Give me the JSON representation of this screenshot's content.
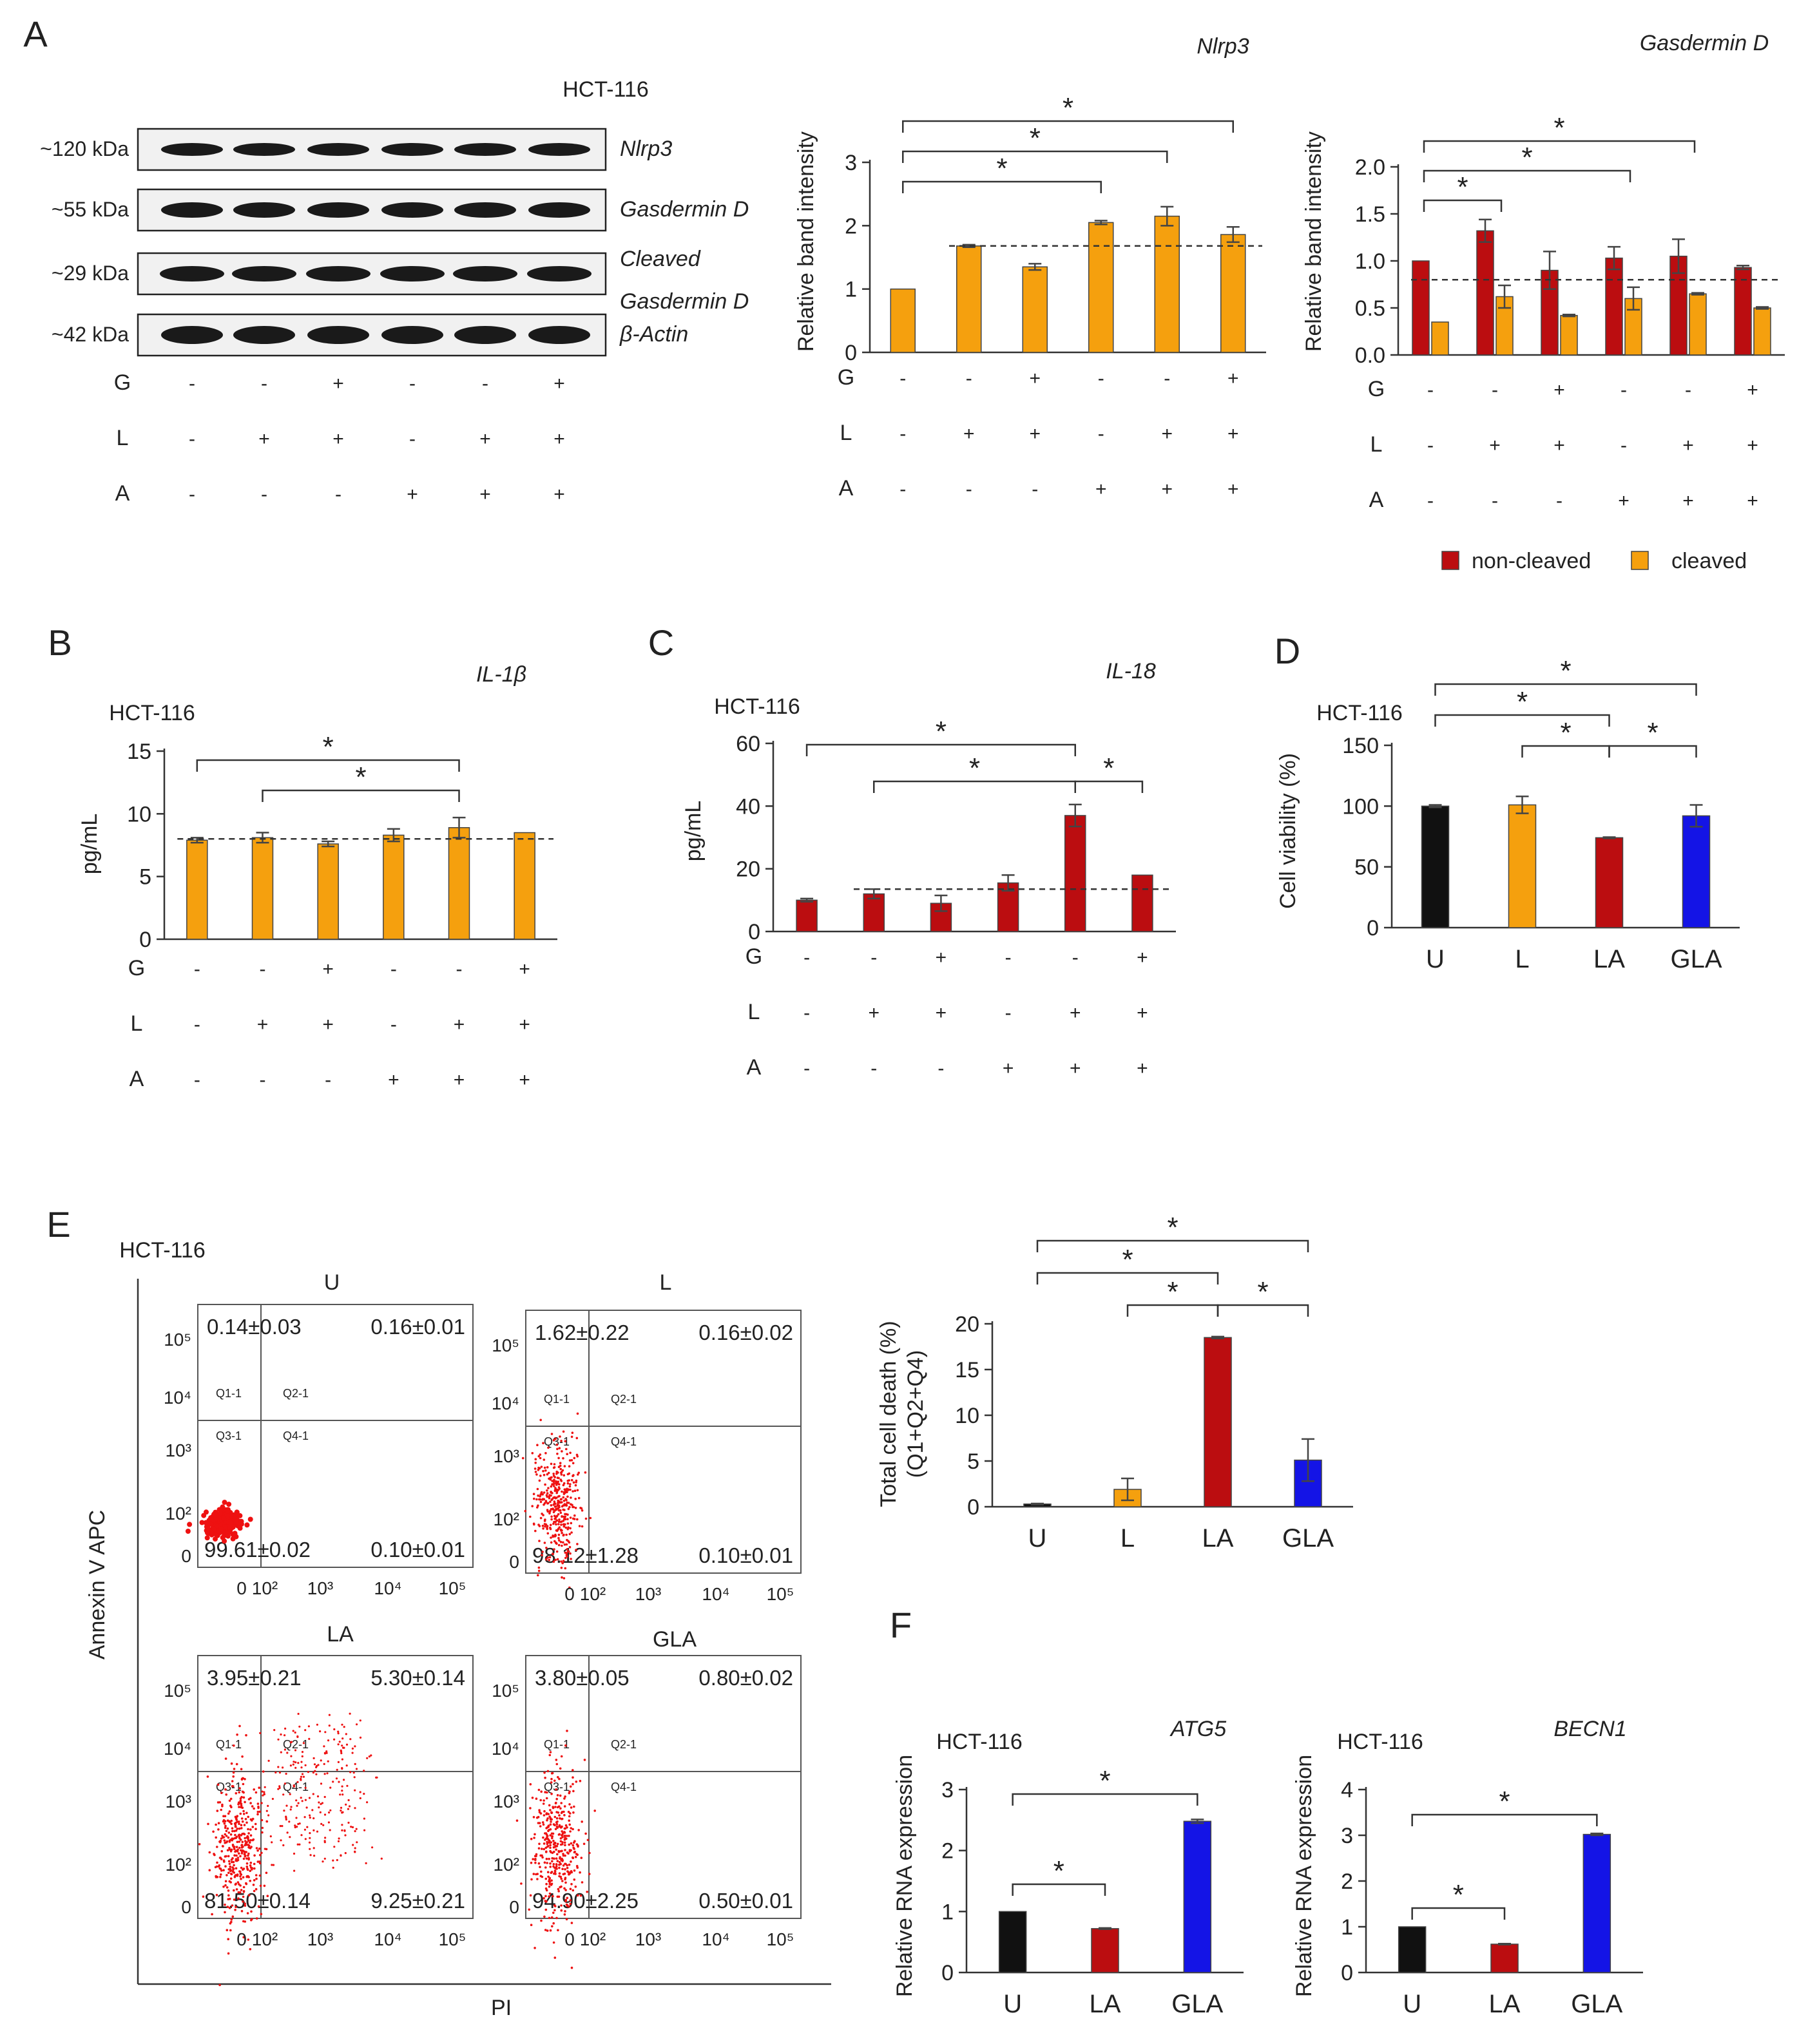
{
  "colors": {
    "orange": "#f5a00e",
    "red": "#bb0d10",
    "black": "#111111",
    "blue": "#1414e6",
    "flow": "#ee1111",
    "axis": "#333333"
  },
  "panelA": {
    "letter": "A",
    "blot": {
      "cell_line": "HCT-116",
      "rows": [
        {
          "kda": "~120 kDa",
          "label_lines": [
            "Nlrp3"
          ]
        },
        {
          "kda": "~55 kDa",
          "label_lines": [
            "Gasdermin D"
          ]
        },
        {
          "kda": "~29 kDa",
          "label_lines": [
            "Cleaved",
            "Gasdermin D"
          ]
        },
        {
          "kda": "~42 kDa",
          "label_lines": [
            "β-Actin"
          ]
        }
      ],
      "treatments": [
        {
          "name": "G",
          "signs": [
            "-",
            "-",
            "+",
            "-",
            "-",
            "+"
          ]
        },
        {
          "name": "L",
          "signs": [
            "-",
            "+",
            "+",
            "-",
            "+",
            "+"
          ]
        },
        {
          "name": "A",
          "signs": [
            "-",
            "-",
            "-",
            "+",
            "+",
            "+"
          ]
        }
      ]
    },
    "nlrp3_chart": {
      "title": "Nlrp3",
      "ylabel": "Relative band intensity",
      "y_ticks": [
        "0",
        "1",
        "2",
        "3"
      ],
      "star": "*",
      "treatments": [
        {
          "name": "G",
          "signs": [
            "-",
            "-",
            "+",
            "-",
            "-",
            "+"
          ]
        },
        {
          "name": "L",
          "signs": [
            "-",
            "+",
            "+",
            "-",
            "+",
            "+"
          ]
        },
        {
          "name": "A",
          "signs": [
            "-",
            "-",
            "-",
            "+",
            "+",
            "+"
          ]
        }
      ]
    },
    "gsdmd_chart": {
      "title": "Gasdermin D",
      "ylabel": "Relative band intensity",
      "y_ticks": [
        "0.0",
        "0.5",
        "1.0",
        "1.5",
        "2.0"
      ],
      "star": "*",
      "legend": [
        "non-cleaved",
        "cleaved"
      ],
      "treatments": [
        {
          "name": "G",
          "signs": [
            "-",
            "-",
            "+",
            "-",
            "-",
            "+"
          ]
        },
        {
          "name": "L",
          "signs": [
            "-",
            "+",
            "+",
            "-",
            "+",
            "+"
          ]
        },
        {
          "name": "A",
          "signs": [
            "-",
            "-",
            "-",
            "+",
            "+",
            "+"
          ]
        }
      ]
    }
  },
  "panelB": {
    "letter": "B",
    "title": "IL-1β",
    "cell_line": "HCT-116",
    "ylabel": "pg/mL",
    "y_ticks": [
      "0",
      "5",
      "10",
      "15"
    ],
    "star": "*",
    "treatments": [
      {
        "name": "G",
        "signs": [
          "-",
          "-",
          "+",
          "-",
          "-",
          "+"
        ]
      },
      {
        "name": "L",
        "signs": [
          "-",
          "+",
          "+",
          "-",
          "+",
          "+"
        ]
      },
      {
        "name": "A",
        "signs": [
          "-",
          "-",
          "-",
          "+",
          "+",
          "+"
        ]
      }
    ]
  },
  "panelC": {
    "letter": "C",
    "title": "IL-18",
    "cell_line": "HCT-116",
    "ylabel": "pg/mL",
    "y_ticks": [
      "0",
      "20",
      "40",
      "60"
    ],
    "star": "*",
    "treatments": [
      {
        "name": "G",
        "signs": [
          "-",
          "-",
          "+",
          "-",
          "-",
          "+"
        ]
      },
      {
        "name": "L",
        "signs": [
          "-",
          "+",
          "+",
          "-",
          "+",
          "+"
        ]
      },
      {
        "name": "A",
        "signs": [
          "-",
          "-",
          "-",
          "+",
          "+",
          "+"
        ]
      }
    ]
  },
  "panelD": {
    "letter": "D",
    "cell_line": "HCT-116",
    "ylabel": "Cell viability (%)",
    "y_ticks": [
      "0",
      "50",
      "100",
      "150"
    ],
    "star": "*"
  },
  "panelE": {
    "letter": "E",
    "cell_line": "HCT-116",
    "yaxis_label": "Annexin V APC",
    "xaxis_label": "PI",
    "axis_ticks": {
      "y": [
        "0",
        "10²",
        "10³",
        "10⁴",
        "10⁵"
      ],
      "x": [
        "0",
        "10²",
        "10³",
        "10⁴",
        "10⁵"
      ]
    },
    "gates": [
      "Q1-1",
      "Q2-1",
      "Q3-1",
      "Q4-1"
    ],
    "plots": [
      {
        "title": "U",
        "q1": "0.14±0.03",
        "q2": "0.16±0.01",
        "q3": "99.61±0.02",
        "q4": "0.10±0.01"
      },
      {
        "title": "L",
        "q1": "1.62±0.22",
        "q2": "0.16±0.02",
        "q3": "98.12±1.28",
        "q4": "0.10±0.01"
      },
      {
        "title": "LA",
        "q1": "3.95±0.21",
        "q2": "5.30±0.14",
        "q3": "81.50±0.14",
        "q4": "9.25±0.21"
      },
      {
        "title": "GLA",
        "q1": "3.80±0.05",
        "q2": "0.80±0.02",
        "q3": "94.90±2.25",
        "q4": "0.50±0.01"
      }
    ],
    "death_chart": {
      "ylabel_lines": [
        "Total cell death (%)",
        "(Q1+Q2+Q4)"
      ],
      "y_ticks": [
        "0",
        "5",
        "10",
        "15",
        "20"
      ],
      "star": "*"
    }
  },
  "panelF": {
    "letter": "F",
    "charts": [
      {
        "title": "ATG5",
        "cell_line": "HCT-116",
        "ylabel": "Relative RNA expression",
        "y_ticks": [
          "0",
          "1",
          "2",
          "3"
        ],
        "star": "*"
      },
      {
        "title": "BECN1",
        "cell_line": "HCT-116",
        "ylabel": "Relative RNA expression",
        "y_ticks": [
          "0",
          "1",
          "2",
          "3",
          "4"
        ],
        "star": "*"
      }
    ]
  },
  "chart_data": [
    {
      "id": "A_nlrp3",
      "type": "bar",
      "title": "Nlrp3",
      "ylabel": "Relative band intensity",
      "ylim": [
        0,
        3
      ],
      "series": [
        {
          "name": "Nlrp3",
          "color": "orange",
          "values": [
            1.0,
            1.68,
            1.35,
            2.05,
            2.15,
            1.86
          ],
          "errors": [
            0,
            0.02,
            0.05,
            0.03,
            0.15,
            0.12
          ]
        }
      ],
      "baseline": 1.68,
      "brackets": [
        {
          "from": 0,
          "to": 3,
          "level": 0
        },
        {
          "from": 0,
          "to": 4,
          "level": 1
        },
        {
          "from": 0,
          "to": 5,
          "level": 2
        }
      ]
    },
    {
      "id": "A_gsdmd",
      "type": "bar",
      "title": "Gasdermin D",
      "ylabel": "Relative band intensity",
      "ylim": [
        0,
        2
      ],
      "series": [
        {
          "name": "non-cleaved",
          "color": "red",
          "values": [
            1.0,
            1.32,
            0.9,
            1.03,
            1.05,
            0.93
          ],
          "errors": [
            0,
            0.12,
            0.2,
            0.12,
            0.18,
            0.02
          ]
        },
        {
          "name": "cleaved",
          "color": "orange",
          "values": [
            0.35,
            0.62,
            0.42,
            0.6,
            0.65,
            0.5
          ],
          "errors": [
            0,
            0.12,
            0.01,
            0.12,
            0.01,
            0.01
          ]
        }
      ],
      "baseline": 0.8,
      "brackets": [
        {
          "from": 0,
          "to": 1,
          "level": 0
        },
        {
          "from": 0,
          "to": 3,
          "level": 1
        },
        {
          "from": 0,
          "to": 4,
          "level": 2
        }
      ]
    },
    {
      "id": "B",
      "type": "bar",
      "title": "IL-1β",
      "ylabel": "pg/mL",
      "ylim": [
        0,
        15
      ],
      "series": [
        {
          "name": "IL-1β",
          "color": "orange",
          "values": [
            7.9,
            8.1,
            7.6,
            8.3,
            8.9,
            8.5
          ],
          "errors": [
            0.2,
            0.4,
            0.2,
            0.5,
            0.8,
            0
          ]
        }
      ],
      "baseline": 8.0,
      "brackets": [
        {
          "from": 1,
          "to": 4,
          "level": 0
        },
        {
          "from": 0,
          "to": 4,
          "level": 1
        }
      ]
    },
    {
      "id": "C",
      "type": "bar",
      "title": "IL-18",
      "ylabel": "pg/mL",
      "ylim": [
        0,
        60
      ],
      "series": [
        {
          "name": "IL-18",
          "color": "red",
          "values": [
            10,
            12,
            9,
            15.5,
            37,
            18
          ],
          "errors": [
            0.5,
            1.5,
            2.5,
            2.5,
            3.5,
            0
          ]
        }
      ],
      "baseline": 13.5,
      "brackets": [
        {
          "from": 4,
          "to": 5,
          "level": 0
        },
        {
          "from": 1,
          "to": 4,
          "level": 0
        },
        {
          "from": 0,
          "to": 4,
          "level": 1
        }
      ]
    },
    {
      "id": "D",
      "type": "bar",
      "ylabel": "Cell viability (%)",
      "ylim": [
        0,
        150
      ],
      "categories": [
        "U",
        "L",
        "LA",
        "GLA"
      ],
      "series": [
        {
          "name": "Cell viability",
          "values": [
            100,
            101,
            74,
            92
          ],
          "errors": [
            1,
            7,
            0.5,
            9
          ],
          "colors": [
            "black",
            "orange",
            "red",
            "blue"
          ]
        }
      ],
      "brackets": [
        {
          "from": 1,
          "to": 2,
          "level": 0
        },
        {
          "from": 2,
          "to": 3,
          "level": 0
        },
        {
          "from": 0,
          "to": 2,
          "level": 1
        },
        {
          "from": 0,
          "to": 3,
          "level": 2
        }
      ]
    },
    {
      "id": "E_death",
      "type": "bar",
      "ylabel": "Total cell death (%) (Q1+Q2+Q4)",
      "ylim": [
        0,
        20
      ],
      "categories": [
        "U",
        "L",
        "LA",
        "GLA"
      ],
      "series": [
        {
          "name": "Total cell death",
          "values": [
            0.3,
            1.9,
            18.5,
            5.1
          ],
          "errors": [
            0.05,
            1.2,
            0.1,
            2.3
          ],
          "colors": [
            "black",
            "orange",
            "red",
            "blue"
          ]
        }
      ],
      "brackets": [
        {
          "from": 1,
          "to": 2,
          "level": 0
        },
        {
          "from": 2,
          "to": 3,
          "level": 0
        },
        {
          "from": 0,
          "to": 2,
          "level": 1
        },
        {
          "from": 0,
          "to": 3,
          "level": 2
        }
      ]
    },
    {
      "id": "F_atg5",
      "type": "bar",
      "title": "ATG5",
      "ylabel": "Relative RNA expression",
      "ylim": [
        0,
        3
      ],
      "categories": [
        "U",
        "LA",
        "GLA"
      ],
      "series": [
        {
          "name": "ATG5",
          "values": [
            1.0,
            0.72,
            2.48
          ],
          "errors": [
            0,
            0.01,
            0.03
          ],
          "colors": [
            "black",
            "red",
            "blue"
          ]
        }
      ],
      "brackets": [
        {
          "from": 0,
          "to": 1,
          "level": 0
        },
        {
          "from": 0,
          "to": 2,
          "level": 1
        }
      ]
    },
    {
      "id": "F_becn1",
      "type": "bar",
      "title": "BECN1",
      "ylabel": "Relative RNA expression",
      "ylim": [
        0,
        4
      ],
      "categories": [
        "U",
        "LA",
        "GLA"
      ],
      "series": [
        {
          "name": "BECN1",
          "values": [
            1.0,
            0.62,
            3.02
          ],
          "errors": [
            0,
            0.01,
            0.02
          ],
          "colors": [
            "black",
            "red",
            "blue"
          ]
        }
      ],
      "brackets": [
        {
          "from": 0,
          "to": 1,
          "level": 0
        },
        {
          "from": 0,
          "to": 2,
          "level": 1
        }
      ]
    }
  ]
}
